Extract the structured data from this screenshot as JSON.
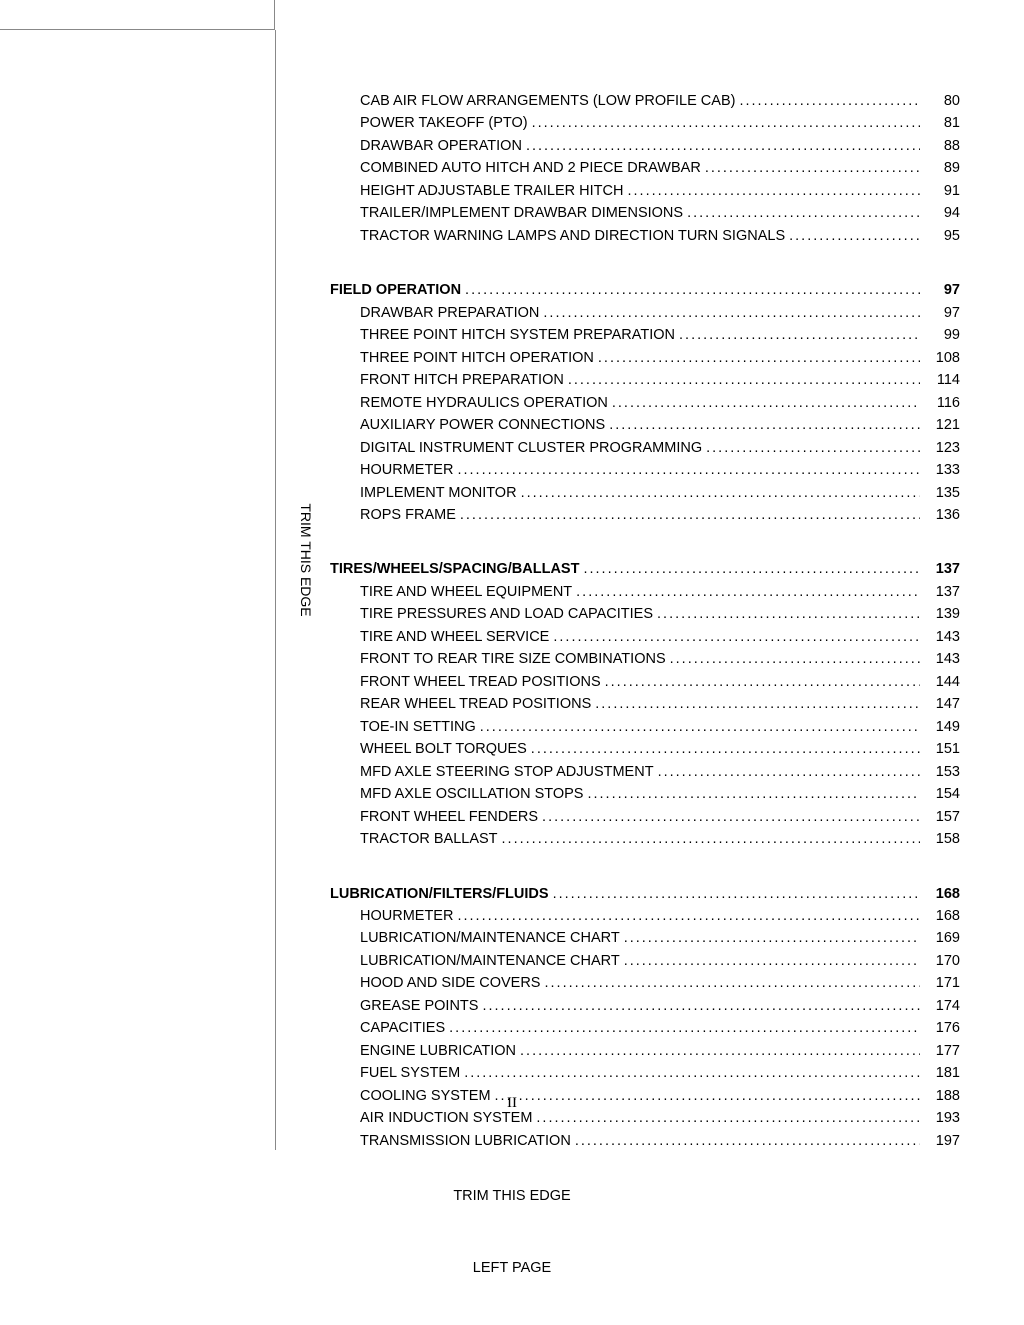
{
  "sections": [
    {
      "heading": null,
      "rows": [
        {
          "title": "CAB AIR FLOW ARRANGEMENTS  (LOW PROFILE CAB)",
          "page": "80"
        },
        {
          "title": "POWER TAKEOFF (PTO)",
          "page": "81"
        },
        {
          "title": "DRAWBAR OPERATION",
          "page": "88"
        },
        {
          "title": "COMBINED AUTO HITCH AND 2 PIECE DRAWBAR",
          "page": "89"
        },
        {
          "title": "HEIGHT ADJUSTABLE TRAILER HITCH",
          "page": "91"
        },
        {
          "title": "TRAILER/IMPLEMENT DRAWBAR DIMENSIONS",
          "page": "94"
        },
        {
          "title": "TRACTOR WARNING LAMPS AND DIRECTION TURN SIGNALS",
          "page": "95"
        }
      ]
    },
    {
      "heading": {
        "title": "FIELD OPERATION",
        "page": "97"
      },
      "rows": [
        {
          "title": "DRAWBAR PREPARATION",
          "page": "97"
        },
        {
          "title": "THREE POINT HITCH SYSTEM PREPARATION",
          "page": "99"
        },
        {
          "title": "THREE POINT HITCH OPERATION",
          "page": "108"
        },
        {
          "title": "FRONT HITCH PREPARATION",
          "page": "114"
        },
        {
          "title": "REMOTE HYDRAULICS OPERATION",
          "page": "116"
        },
        {
          "title": "AUXILIARY POWER CONNECTIONS",
          "page": "121"
        },
        {
          "title": "DIGITAL INSTRUMENT CLUSTER PROGRAMMING",
          "page": "123"
        },
        {
          "title": "HOURMETER",
          "page": "133"
        },
        {
          "title": "IMPLEMENT MONITOR",
          "page": "135"
        },
        {
          "title": "ROPS FRAME",
          "page": "136"
        }
      ]
    },
    {
      "heading": {
        "title": "TIRES/WHEELS/SPACING/BALLAST",
        "page": "137"
      },
      "rows": [
        {
          "title": "TIRE AND WHEEL EQUIPMENT",
          "page": "137"
        },
        {
          "title": "TIRE PRESSURES AND LOAD CAPACITIES",
          "page": "139"
        },
        {
          "title": "TIRE AND WHEEL SERVICE",
          "page": "143"
        },
        {
          "title": "FRONT TO REAR TIRE SIZE COMBINATIONS",
          "page": "143"
        },
        {
          "title": "FRONT WHEEL TREAD POSITIONS",
          "page": "144"
        },
        {
          "title": "REAR WHEEL TREAD POSITIONS",
          "page": "147"
        },
        {
          "title": "TOE-IN SETTING",
          "page": "149"
        },
        {
          "title": "WHEEL BOLT TORQUES",
          "page": "151"
        },
        {
          "title": "MFD AXLE STEERING STOP ADJUSTMENT",
          "page": "153"
        },
        {
          "title": "MFD AXLE OSCILLATION STOPS",
          "page": "154"
        },
        {
          "title": "FRONT WHEEL FENDERS",
          "page": "157"
        },
        {
          "title": "TRACTOR BALLAST",
          "page": "158"
        }
      ]
    },
    {
      "heading": {
        "title": "LUBRICATION/FILTERS/FLUIDS",
        "page": "168"
      },
      "rows": [
        {
          "title": "HOURMETER",
          "page": "168"
        },
        {
          "title": "LUBRICATION/MAINTENANCE CHART",
          "page": "169"
        },
        {
          "title": "LUBRICATION/MAINTENANCE CHART",
          "page": "170"
        },
        {
          "title": "HOOD AND SIDE COVERS",
          "page": "171"
        },
        {
          "title": "GREASE POINTS",
          "page": "174"
        },
        {
          "title": "CAPACITIES",
          "page": "176"
        },
        {
          "title": "ENGINE LUBRICATION",
          "page": "177"
        },
        {
          "title": "FUEL SYSTEM",
          "page": "181"
        },
        {
          "title": "COOLING SYSTEM",
          "page": "188"
        },
        {
          "title": "AIR INDUCTION SYSTEM",
          "page": "193"
        },
        {
          "title": "TRANSMISSION LUBRICATION",
          "page": "197"
        }
      ]
    }
  ],
  "pageNumber": "II",
  "verticalLabel": "TRIM THIS EDGE",
  "footerTrim": "TRIM THIS EDGE",
  "footerLeft": "LEFT PAGE"
}
